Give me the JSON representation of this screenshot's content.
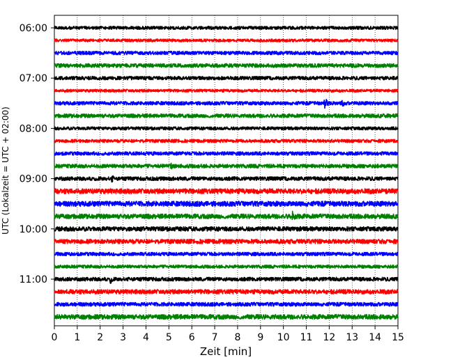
{
  "chart_data": {
    "type": "line",
    "subtype": "helicorder",
    "xlabel": "Zeit  [min]",
    "ylabel": "UTC (Lokalzeit = UTC + 02:00)",
    "xlim": [
      0,
      15
    ],
    "x_ticks": [
      "0",
      "1",
      "2",
      "3",
      "4",
      "5",
      "6",
      "7",
      "8",
      "9",
      "10",
      "11",
      "12",
      "13",
      "14",
      "15"
    ],
    "y_ticks": [
      "06:00",
      "07:00",
      "08:00",
      "09:00",
      "10:00",
      "11:00"
    ],
    "vertical_grid": "dotted",
    "colors": [
      "#000000",
      "#ff0000",
      "#0000ff",
      "#008000"
    ],
    "traces": [
      {
        "time": "06:00",
        "color": "#000000",
        "thickness": 0.5,
        "events": [
          {
            "t": 2.95,
            "amp": 0.35,
            "dur": 0.35
          }
        ]
      },
      {
        "time": "06:15",
        "color": "#ff0000",
        "thickness": 0.45,
        "events": []
      },
      {
        "time": "06:30",
        "color": "#0000ff",
        "thickness": 0.55,
        "events": []
      },
      {
        "time": "06:45",
        "color": "#008000",
        "thickness": 0.6,
        "events": []
      },
      {
        "time": "07:00",
        "color": "#000000",
        "thickness": 0.55,
        "events": []
      },
      {
        "time": "07:15",
        "color": "#ff0000",
        "thickness": 0.45,
        "events": [
          {
            "t": 5.7,
            "amp": 0.3,
            "dur": 0.15
          }
        ]
      },
      {
        "time": "07:30",
        "color": "#0000ff",
        "thickness": 0.55,
        "events": [
          {
            "t": 11.8,
            "amp": 1.9,
            "dur": 0.5
          },
          {
            "t": 12.55,
            "amp": 1.4,
            "dur": 0.45
          }
        ]
      },
      {
        "time": "07:45",
        "color": "#008000",
        "thickness": 0.6,
        "events": [
          {
            "t": 5.6,
            "amp": 0.35,
            "dur": 0.2
          }
        ]
      },
      {
        "time": "08:00",
        "color": "#000000",
        "thickness": 0.5,
        "events": []
      },
      {
        "time": "08:15",
        "color": "#ff0000",
        "thickness": 0.5,
        "events": [
          {
            "t": 0.05,
            "amp": 0.6,
            "dur": 0.15
          },
          {
            "t": 11.6,
            "amp": 0.35,
            "dur": 0.1
          }
        ]
      },
      {
        "time": "08:30",
        "color": "#0000ff",
        "thickness": 0.55,
        "events": [
          {
            "t": 10.3,
            "amp": 0.35,
            "dur": 0.3
          }
        ]
      },
      {
        "time": "08:45",
        "color": "#008000",
        "thickness": 0.6,
        "events": [
          {
            "t": 5.1,
            "amp": 1.45,
            "dur": 0.55
          }
        ]
      },
      {
        "time": "09:00",
        "color": "#000000",
        "thickness": 0.6,
        "events": [
          {
            "t": 0.8,
            "amp": 0.45,
            "dur": 0.1
          },
          {
            "t": 2.5,
            "amp": 1.4,
            "dur": 0.45
          }
        ]
      },
      {
        "time": "09:15",
        "color": "#ff0000",
        "thickness": 0.8,
        "events": []
      },
      {
        "time": "09:30",
        "color": "#0000ff",
        "thickness": 0.8,
        "events": []
      },
      {
        "time": "09:45",
        "color": "#008000",
        "thickness": 0.75,
        "events": [
          {
            "t": 10.4,
            "amp": 2.1,
            "dur": 0.6
          }
        ]
      },
      {
        "time": "10:00",
        "color": "#000000",
        "thickness": 0.7,
        "events": []
      },
      {
        "time": "10:15",
        "color": "#ff0000",
        "thickness": 0.7,
        "events": []
      },
      {
        "time": "10:30",
        "color": "#0000ff",
        "thickness": 0.55,
        "events": [
          {
            "t": 13.8,
            "amp": 0.3,
            "dur": 0.1
          }
        ]
      },
      {
        "time": "10:45",
        "color": "#008000",
        "thickness": 0.5,
        "events": []
      },
      {
        "time": "11:00",
        "color": "#000000",
        "thickness": 0.6,
        "events": [
          {
            "t": 2.45,
            "amp": 1.5,
            "dur": 0.4
          }
        ]
      },
      {
        "time": "11:15",
        "color": "#ff0000",
        "thickness": 0.7,
        "events": []
      },
      {
        "time": "11:30",
        "color": "#0000ff",
        "thickness": 0.6,
        "events": [
          {
            "t": 1.45,
            "amp": 0.35,
            "dur": 0.15
          },
          {
            "t": 6.6,
            "amp": 0.3,
            "dur": 0.1
          }
        ]
      },
      {
        "time": "11:45",
        "color": "#008000",
        "thickness": 0.75,
        "events": [
          {
            "t": 1.1,
            "amp": 0.4,
            "dur": 0.15
          },
          {
            "t": 14.2,
            "amp": 0.4,
            "dur": 0.3
          }
        ]
      }
    ]
  }
}
